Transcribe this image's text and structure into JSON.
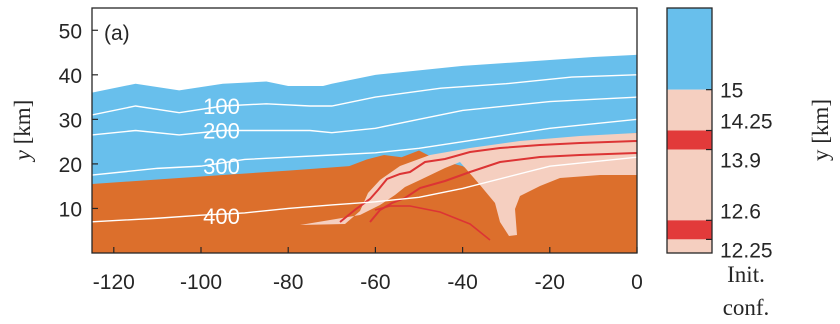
{
  "chart_data": {
    "type": "area",
    "panel_label": "(a)",
    "ylabel_var": "y",
    "ylabel_unit": "[km]",
    "xlim": [
      -125,
      0
    ],
    "ylim": [
      0,
      55
    ],
    "x_ticks": [
      -120,
      -100,
      -80,
      -60,
      -40,
      -20,
      0
    ],
    "y_ticks": [
      10,
      20,
      30,
      40,
      50
    ],
    "grid": false,
    "layers": [
      {
        "name": "top",
        "color": "#68bfec",
        "upper": [
          [
            -125,
            36
          ],
          [
            -115,
            38
          ],
          [
            -105,
            36.5
          ],
          [
            -95,
            38
          ],
          [
            -85,
            38.5
          ],
          [
            -80,
            37.5
          ],
          [
            -72,
            37.5
          ],
          [
            -70,
            38
          ],
          [
            -60,
            40
          ],
          [
            -50,
            41
          ],
          [
            -40,
            42
          ],
          [
            -25,
            43
          ],
          [
            -10,
            44
          ],
          [
            0,
            44.5
          ]
        ]
      },
      {
        "name": "bottom",
        "color": "#dc6f2c",
        "upper": [
          [
            -125,
            15.5
          ],
          [
            -110,
            16.5
          ],
          [
            -95,
            17.5
          ],
          [
            -80,
            18.5
          ],
          [
            -66,
            19.5
          ],
          [
            -62,
            21
          ],
          [
            -58,
            22
          ],
          [
            -54,
            21.5
          ],
          [
            -50,
            23
          ],
          [
            -46,
            21
          ],
          [
            -40,
            19.5
          ],
          [
            -34,
            16
          ],
          [
            -31,
            15
          ],
          [
            -28,
            20
          ],
          [
            -24,
            24
          ],
          [
            -20,
            25
          ],
          [
            -10,
            26
          ],
          [
            0,
            27
          ]
        ]
      }
    ],
    "contours": [
      {
        "label": "100",
        "color": "#ffffff",
        "points": [
          [
            -125,
            31
          ],
          [
            -115,
            33
          ],
          [
            -105,
            31.5
          ],
          [
            -95,
            33
          ],
          [
            -85,
            33.5
          ],
          [
            -75,
            33
          ],
          [
            -70,
            33
          ],
          [
            -60,
            35
          ],
          [
            -45,
            37
          ],
          [
            -30,
            38
          ],
          [
            -15,
            39.5
          ],
          [
            0,
            40
          ]
        ],
        "label_at": [
          -95.3,
          33
        ]
      },
      {
        "label": "200",
        "color": "#ffffff",
        "points": [
          [
            -125,
            26.5
          ],
          [
            -115,
            27.5
          ],
          [
            -105,
            26.5
          ],
          [
            -95,
            27.5
          ],
          [
            -85,
            27.5
          ],
          [
            -75,
            27.5
          ],
          [
            -70,
            27
          ],
          [
            -60,
            28
          ],
          [
            -50,
            30
          ],
          [
            -40,
            32
          ],
          [
            -20,
            34
          ],
          [
            0,
            35
          ]
        ],
        "label_at": [
          -95.3,
          27.5
        ]
      },
      {
        "label": "300",
        "color": "#ffffff",
        "points": [
          [
            -125,
            17.5
          ],
          [
            -110,
            19
          ],
          [
            -100,
            19.5
          ],
          [
            -90,
            21
          ],
          [
            -80,
            21.5
          ],
          [
            -70,
            22
          ],
          [
            -60,
            22.5
          ],
          [
            -50,
            23.5
          ],
          [
            -40,
            25
          ],
          [
            -20,
            28
          ],
          [
            0,
            30
          ]
        ],
        "label_at": [
          -95.3,
          19.5
        ]
      },
      {
        "label": "400",
        "color": "#ffffff",
        "points": [
          [
            -125,
            7
          ],
          [
            -110,
            7.8
          ],
          [
            -100,
            8.5
          ],
          [
            -90,
            9
          ],
          [
            -80,
            10
          ],
          [
            -70,
            10.8
          ],
          [
            -60,
            11.5
          ],
          [
            -50,
            12.5
          ],
          [
            -40,
            14.5
          ],
          [
            -20,
            19.5
          ],
          [
            0,
            21.5
          ]
        ],
        "label_at": [
          -95.3,
          8.3
        ]
      }
    ],
    "colorbar": {
      "tick_labels": [
        "15",
        "14.25",
        "13.9",
        "12.6",
        "12.25"
      ],
      "caption": [
        "Init.",
        "conf."
      ],
      "bands": [
        {
          "from": 15,
          "to": 16.5,
          "color": "#68bfec"
        },
        {
          "from": 14.25,
          "to": 15,
          "color": "#f5cfc0"
        },
        {
          "from": 13.9,
          "to": 14.25,
          "color": "#e23a3a"
        },
        {
          "from": 12.6,
          "to": 13.9,
          "color": "#f5cfc0"
        },
        {
          "from": 12.25,
          "to": 12.6,
          "color": "#e23a3a"
        },
        {
          "from": 12.0,
          "to": 12.25,
          "color": "#f5cfc0"
        }
      ],
      "range": [
        12.0,
        16.5
      ]
    },
    "partial_right_label": "y [km]"
  }
}
